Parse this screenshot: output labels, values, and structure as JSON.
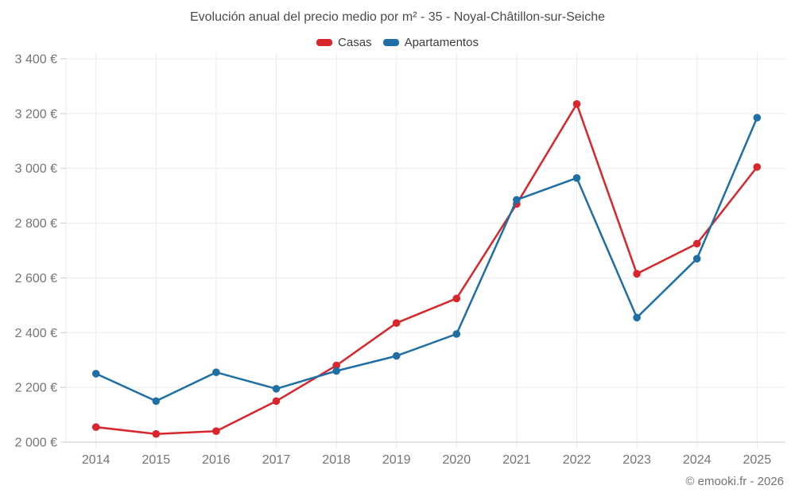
{
  "chart_data": {
    "type": "line",
    "title": "Evolución anual del precio medio por m² - 35 - Noyal-Châtillon-sur-Seiche",
    "categories": [
      "2014",
      "2015",
      "2016",
      "2017",
      "2018",
      "2019",
      "2020",
      "2021",
      "2022",
      "2023",
      "2024",
      "2025"
    ],
    "series": [
      {
        "name": "Casas",
        "color": "#d9262c",
        "values": [
          2055,
          2030,
          2040,
          2150,
          2280,
          2435,
          2525,
          2870,
          3235,
          2615,
          2725,
          3005
        ]
      },
      {
        "name": "Apartamentos",
        "color": "#1d6fa5",
        "values": [
          2250,
          2150,
          2255,
          2195,
          2260,
          2315,
          2395,
          2885,
          2965,
          2455,
          2670,
          3185
        ]
      }
    ],
    "xlabel": "",
    "ylabel": "",
    "ylim": [
      2000,
      3400
    ],
    "yticks": [
      {
        "value": 2000,
        "label": "2 000 €"
      },
      {
        "value": 2200,
        "label": "2 200 €"
      },
      {
        "value": 2400,
        "label": "2 400 €"
      },
      {
        "value": 2600,
        "label": "2 600 €"
      },
      {
        "value": 2800,
        "label": "2 800 €"
      },
      {
        "value": 3000,
        "label": "3 000 €"
      },
      {
        "value": 3200,
        "label": "3 200 €"
      },
      {
        "value": 3400,
        "label": "3 400 €"
      }
    ],
    "grid": true,
    "legend_position": "top"
  },
  "footer": {
    "text": "© emooki.fr - 2026"
  },
  "colors": {
    "grid": "#ebebeb",
    "axis": "#cccccc",
    "tick_text": "#757575",
    "title_text": "#4a4a4a",
    "legend_text": "#3c3c3c",
    "footer_text": "#737373"
  }
}
